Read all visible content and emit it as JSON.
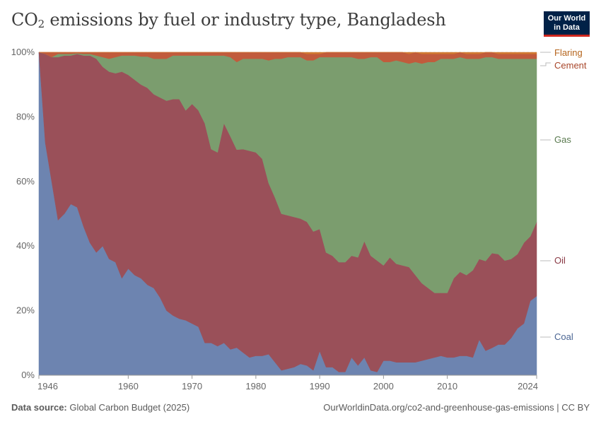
{
  "header": {
    "title_main": "CO",
    "title_sub": "2",
    "title_rest": " emissions by fuel or industry type, Bangladesh",
    "logo_line1": "Our World",
    "logo_line2": "in Data"
  },
  "footer": {
    "source_label": "Data source:",
    "source_text": " Global Carbon Budget (2025)",
    "url": "OurWorldinData.org/co2-and-greenhouse-gas-emissions | CC BY"
  },
  "chart_data": {
    "type": "area",
    "stacked": true,
    "normalized": true,
    "title": "CO2 emissions by fuel or industry type, Bangladesh",
    "xlabel": "",
    "ylabel": "",
    "xlim": [
      1946,
      2024
    ],
    "ylim": [
      0,
      100
    ],
    "x_ticks": [
      1946,
      1960,
      1970,
      1980,
      1990,
      2000,
      2010,
      2024
    ],
    "y_ticks": [
      "0%",
      "20%",
      "40%",
      "60%",
      "80%",
      "100%"
    ],
    "x": [
      1946,
      1947,
      1948,
      1949,
      1950,
      1951,
      1952,
      1953,
      1954,
      1955,
      1956,
      1957,
      1958,
      1959,
      1960,
      1961,
      1962,
      1963,
      1964,
      1965,
      1966,
      1967,
      1968,
      1969,
      1970,
      1971,
      1972,
      1973,
      1974,
      1975,
      1976,
      1977,
      1978,
      1979,
      1980,
      1981,
      1982,
      1983,
      1984,
      1985,
      1986,
      1987,
      1988,
      1989,
      1990,
      1991,
      1992,
      1993,
      1994,
      1995,
      1996,
      1997,
      1998,
      1999,
      2000,
      2001,
      2002,
      2003,
      2004,
      2005,
      2006,
      2007,
      2008,
      2009,
      2010,
      2011,
      2012,
      2013,
      2014,
      2015,
      2016,
      2017,
      2018,
      2019,
      2020,
      2021,
      2022,
      2023,
      2024
    ],
    "series": [
      {
        "name": "Coal",
        "color": "#6d84b0",
        "values": [
          100,
          72,
          60,
          48,
          50,
          53,
          52,
          46,
          41,
          38,
          40,
          36,
          35,
          30,
          33,
          31,
          30,
          28,
          27,
          24,
          20,
          18.5,
          17.5,
          17,
          16,
          15,
          10,
          10,
          9,
          10,
          8,
          8.5,
          7,
          5.5,
          6,
          6,
          6.5,
          4,
          1.5,
          2,
          2.5,
          3.5,
          3,
          1.5,
          7.5,
          2.5,
          2.5,
          1,
          1,
          5.5,
          3,
          5.5,
          1.5,
          1,
          4.5,
          4.5,
          4,
          4,
          4,
          4,
          4.5,
          5,
          5.5,
          6,
          5.5,
          5.5,
          6,
          6,
          5.5,
          11,
          7.5,
          8.5,
          9.5,
          9.5,
          11.5,
          14.5,
          16,
          23,
          24.5
        ]
      },
      {
        "name": "Oil",
        "color": "#9a5059",
        "values": [
          0,
          27.5,
          38.5,
          50.5,
          49,
          46,
          47.5,
          53,
          58,
          60,
          55.5,
          58,
          58.5,
          64,
          60,
          60.5,
          60,
          61,
          60,
          62,
          65,
          67,
          68,
          65,
          68,
          67,
          68,
          60,
          60,
          68,
          66,
          61,
          63,
          64,
          63,
          61,
          53,
          51,
          48.5,
          47.5,
          46.5,
          45,
          44.5,
          43,
          38,
          35.5,
          34.5,
          34,
          34,
          31.5,
          33.5,
          36,
          35.5,
          34.5,
          29.5,
          32,
          30.5,
          30,
          29.5,
          27,
          24,
          22,
          20,
          19.5,
          20,
          24.5,
          26,
          25,
          27,
          25,
          27.5,
          29.5,
          28,
          26,
          24.5,
          23,
          25,
          20,
          23
        ]
      },
      {
        "name": "Gas",
        "color": "#7b9d6e",
        "values": [
          0,
          0,
          0,
          1,
          0.5,
          0.5,
          0.2,
          0.5,
          0.5,
          1,
          3,
          4,
          5,
          5,
          6,
          7.5,
          8.7,
          9.7,
          11,
          12,
          13,
          13.5,
          13.5,
          17,
          15,
          17,
          21,
          29,
          30,
          21,
          24.5,
          27,
          28,
          28.5,
          29,
          31,
          38,
          43,
          48,
          49,
          49.5,
          50,
          50,
          53,
          53.5,
          60.5,
          61.5,
          63.5,
          63.5,
          61.5,
          61.5,
          56.5,
          61.5,
          63,
          63,
          60.5,
          63,
          63,
          63,
          66,
          68,
          70,
          71.5,
          72.5,
          72.5,
          68,
          66.5,
          67,
          65.5,
          62,
          62.5,
          61,
          60.5,
          62.5,
          62,
          60.5,
          57,
          55,
          50.5
        ]
      },
      {
        "name": "Cement",
        "color": "#c15b3c",
        "values": [
          0,
          0.5,
          1.5,
          0.5,
          0.5,
          0.5,
          0.3,
          0.5,
          0.5,
          1,
          1.5,
          2,
          1.5,
          1,
          1,
          1,
          1.3,
          1.3,
          2,
          2,
          2,
          1,
          1,
          1,
          1,
          1,
          1,
          1,
          1,
          1,
          1.5,
          3,
          2,
          2,
          2,
          2,
          2.5,
          2,
          2,
          1.5,
          1.5,
          1.5,
          2,
          2,
          1,
          1.5,
          1.5,
          1.5,
          1.5,
          1.5,
          2,
          2,
          1.5,
          1.5,
          3,
          3,
          2.5,
          3,
          3,
          3,
          3,
          2.5,
          2.5,
          1.5,
          1.5,
          1.5,
          1.5,
          1.5,
          1.5,
          1.5,
          1.5,
          1.5,
          1.5,
          1.5,
          1.5,
          1.5,
          1.5,
          1.5,
          1.5
        ]
      },
      {
        "name": "Flaring",
        "color": "#d17a32",
        "values": [
          0,
          0,
          0,
          0,
          0,
          0,
          0,
          0,
          0,
          0,
          0,
          0,
          0,
          0,
          0,
          0,
          0,
          0,
          0,
          0,
          0,
          0,
          0,
          0,
          0,
          0,
          0,
          0,
          0,
          0,
          0,
          0,
          0,
          0,
          0,
          0,
          0,
          0,
          0,
          0,
          0,
          0,
          0.5,
          0.5,
          0.5,
          0,
          0,
          0,
          0,
          0,
          0,
          0,
          0,
          0,
          0,
          0,
          0,
          0,
          0.5,
          0,
          0.5,
          0.5,
          0.5,
          0.5,
          0.5,
          0.5,
          0,
          0.5,
          0.5,
          0.5,
          0,
          0,
          0.5,
          0.5,
          0.5,
          0.5,
          0.5,
          0.5,
          0.5
        ]
      }
    ],
    "legend": [
      "Flaring",
      "Cement",
      "Gas",
      "Oil",
      "Coal"
    ],
    "legend_position": "right"
  }
}
